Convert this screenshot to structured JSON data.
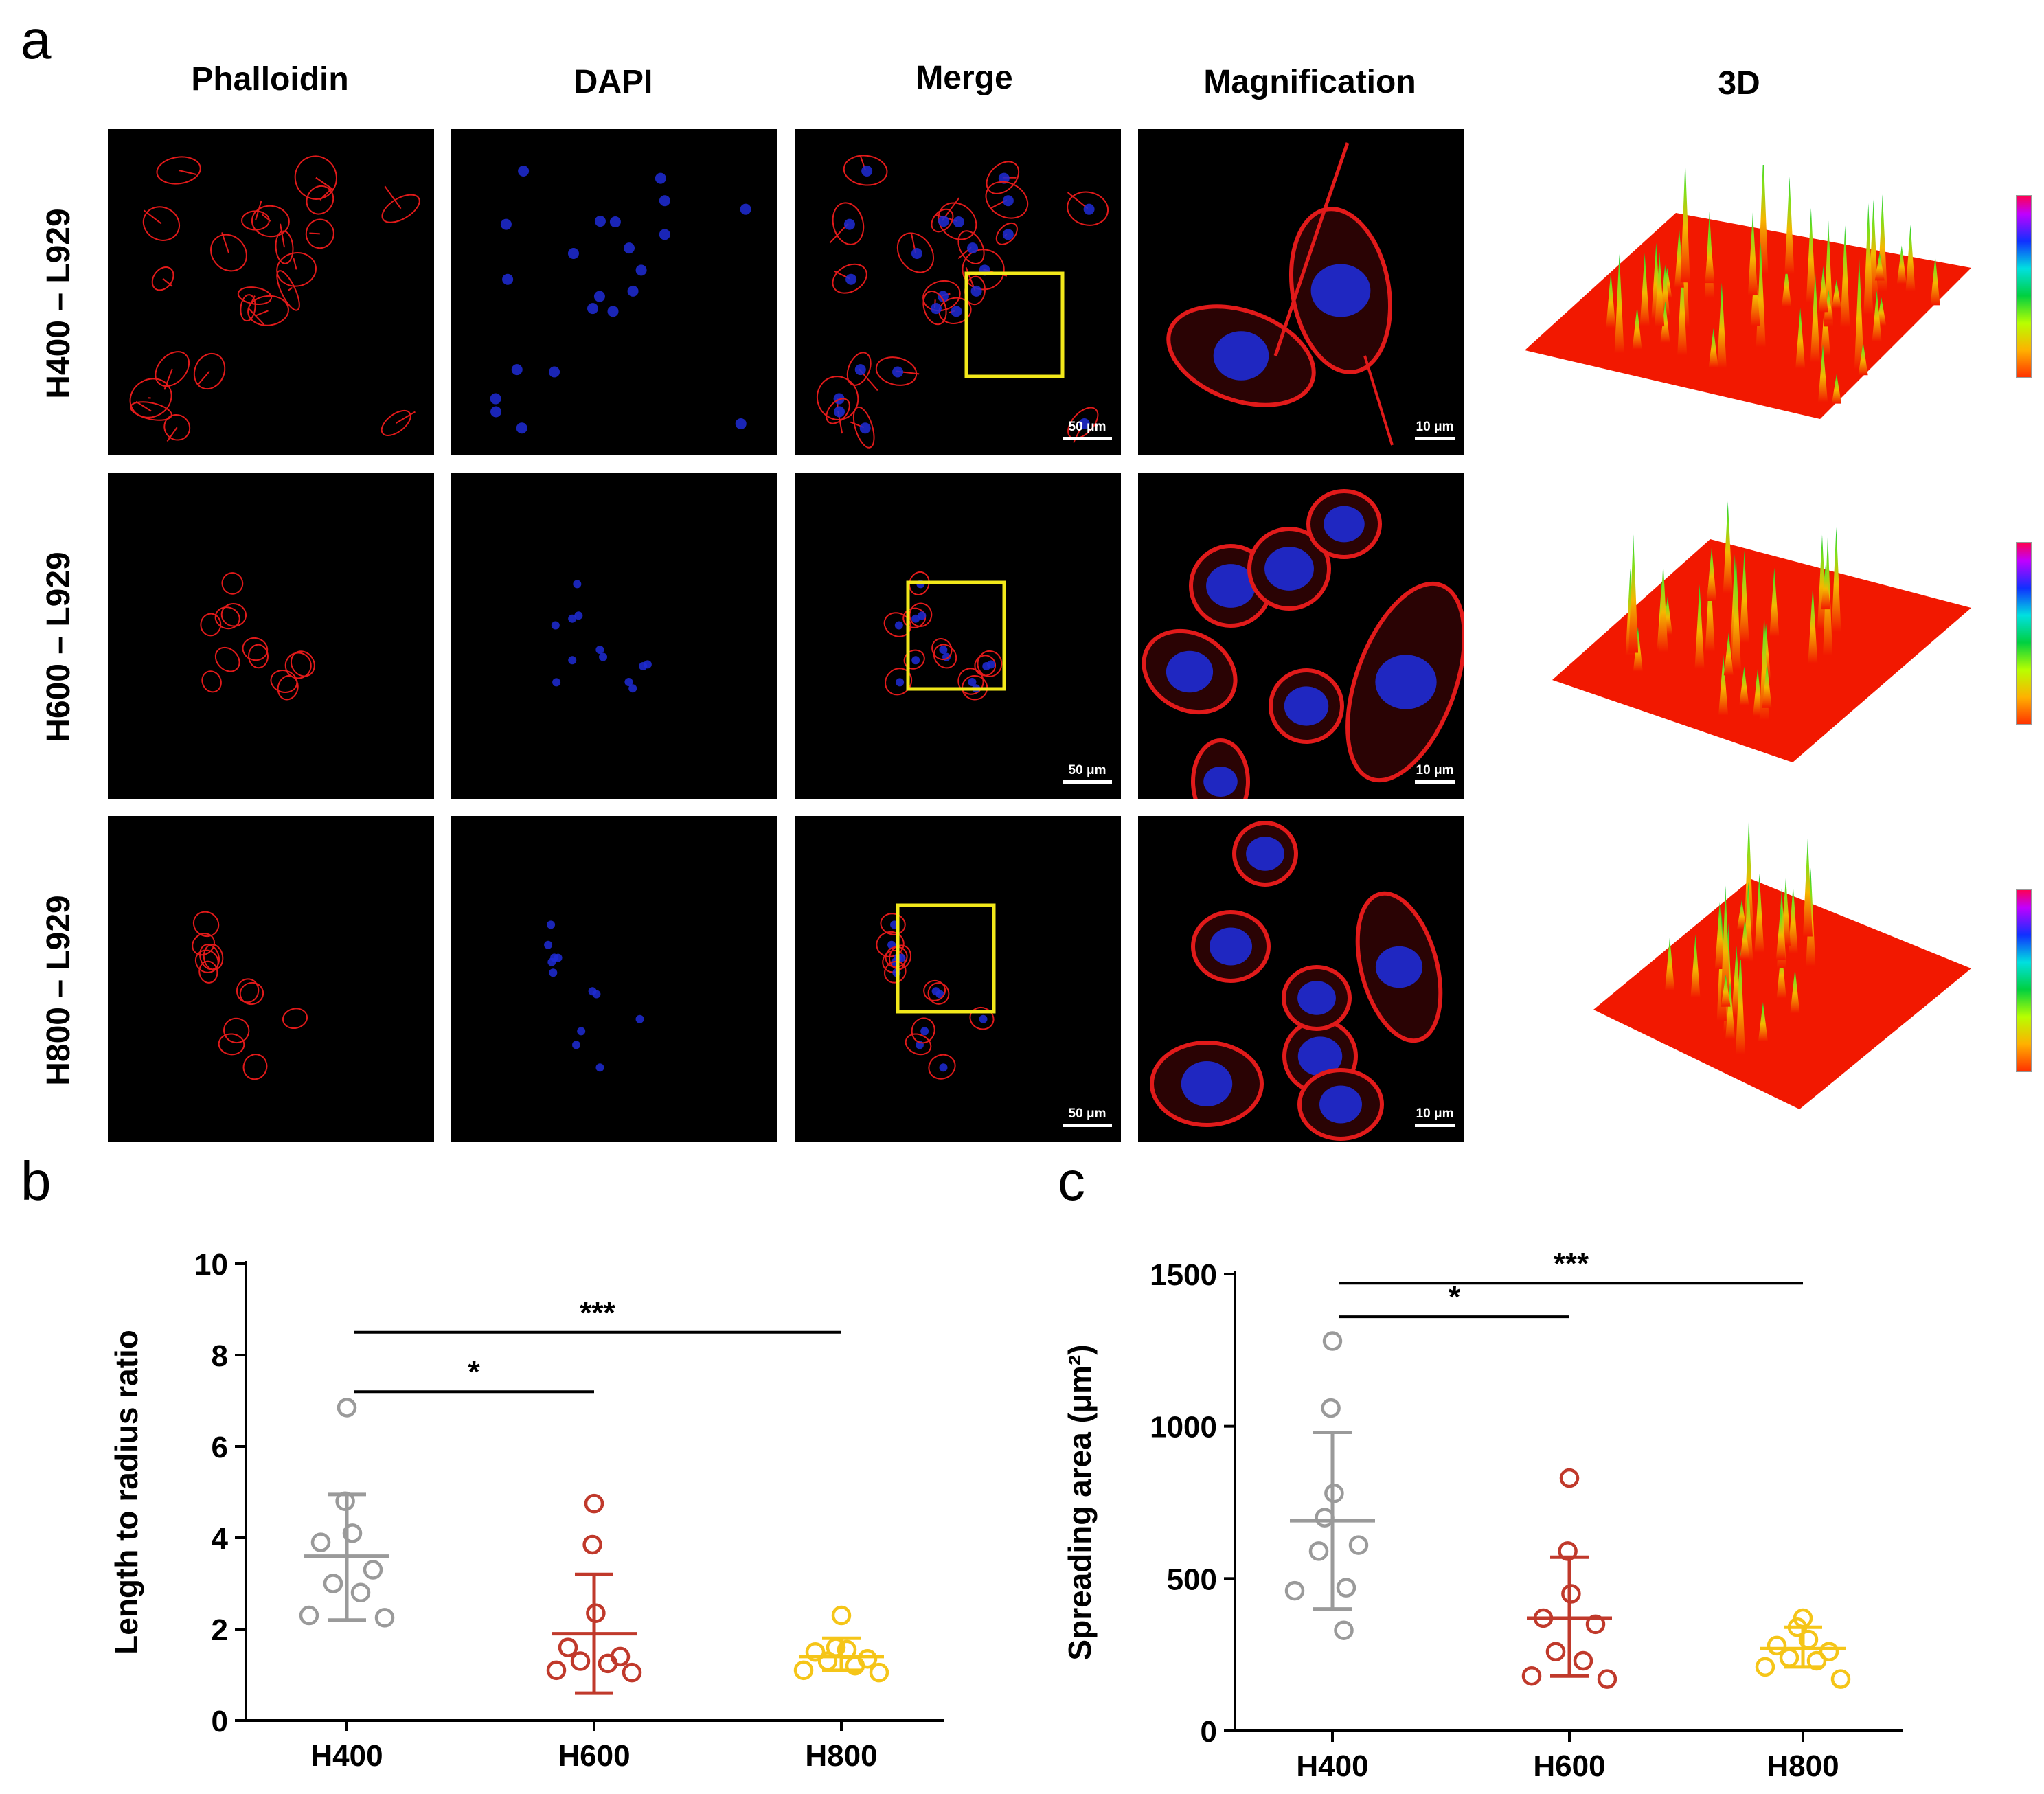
{
  "panel_a": {
    "letter": "a",
    "columns": [
      "Phalloidin",
      "DAPI",
      "Merge",
      "Magnification",
      "3D"
    ],
    "rows": [
      "H400 – L929",
      "H600 – L929",
      "H800 – L929"
    ],
    "scalebar_merge": "50 μm",
    "scalebar_mag": "10 μm",
    "colors": {
      "actin": "#e11a1a",
      "nucleus": "#1e2bd6",
      "box": "#f2e81a",
      "surface": "#f21800"
    }
  },
  "panel_b": {
    "letter": "b"
  },
  "panel_c": {
    "letter": "c"
  },
  "chart_data": [
    {
      "type": "scatter",
      "ylabel": "Length to radius ratio",
      "ylim": [
        0,
        10
      ],
      "yticks": [
        0,
        2,
        4,
        6,
        8,
        10
      ],
      "categories": [
        "H400",
        "H600",
        "H800"
      ],
      "series": [
        {
          "category": "H400",
          "color": "#9a9a9a",
          "mean": 3.6,
          "sd_upper": 4.95,
          "sd_lower": 2.2,
          "points": [
            6.85,
            4.8,
            4.1,
            3.9,
            3.3,
            3.0,
            2.8,
            2.3,
            2.25
          ]
        },
        {
          "category": "H600",
          "color": "#c0392b",
          "mean": 1.9,
          "sd_upper": 3.2,
          "sd_lower": 0.6,
          "points": [
            4.75,
            3.85,
            2.35,
            1.6,
            1.4,
            1.3,
            1.25,
            1.1,
            1.05
          ]
        },
        {
          "category": "H800",
          "color": "#f5c518",
          "mean": 1.4,
          "sd_upper": 1.8,
          "sd_lower": 1.1,
          "points": [
            2.3,
            1.6,
            1.55,
            1.5,
            1.35,
            1.3,
            1.2,
            1.1,
            1.05
          ]
        }
      ],
      "significance": [
        {
          "from": "H400",
          "to": "H600",
          "label": "*",
          "y": 7.2
        },
        {
          "from": "H400",
          "to": "H800",
          "label": "***",
          "y": 8.5
        }
      ]
    },
    {
      "type": "scatter",
      "ylabel": "Spreading area (μm²)",
      "ylim": [
        0,
        1500
      ],
      "yticks": [
        0,
        500,
        1000,
        1500
      ],
      "categories": [
        "H400",
        "H600",
        "H800"
      ],
      "series": [
        {
          "category": "H400",
          "color": "#9a9a9a",
          "mean": 690,
          "sd_upper": 980,
          "sd_lower": 400,
          "points": [
            1280,
            1060,
            780,
            700,
            610,
            590,
            470,
            460,
            330
          ]
        },
        {
          "category": "H600",
          "color": "#c0392b",
          "mean": 370,
          "sd_upper": 570,
          "sd_lower": 180,
          "points": [
            830,
            590,
            450,
            370,
            350,
            260,
            230,
            180,
            170
          ]
        },
        {
          "category": "H800",
          "color": "#f5c518",
          "mean": 270,
          "sd_upper": 340,
          "sd_lower": 210,
          "points": [
            370,
            340,
            300,
            280,
            260,
            240,
            230,
            210,
            170
          ]
        }
      ],
      "significance": [
        {
          "from": "H400",
          "to": "H600",
          "label": "*",
          "y": 1360
        },
        {
          "from": "H400",
          "to": "H800",
          "label": "***",
          "y": 1470
        }
      ]
    }
  ]
}
